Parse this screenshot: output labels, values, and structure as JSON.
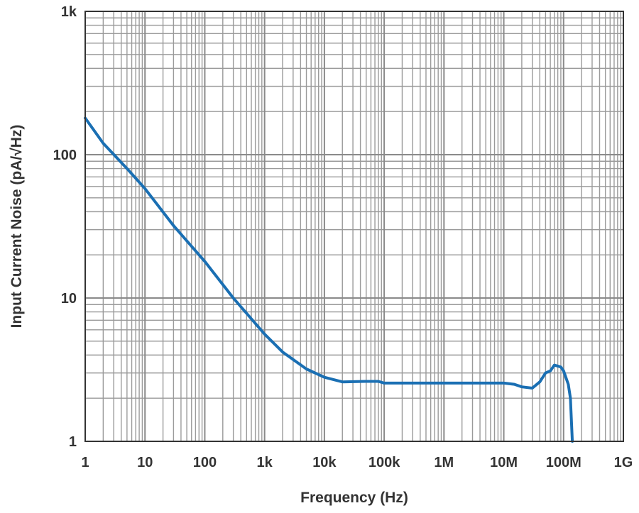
{
  "chart_data": {
    "type": "line",
    "title": "",
    "xlabel": "Frequency (Hz)",
    "ylabel": "Input Current Noise (pA/√Hz)",
    "xscale": "log",
    "yscale": "log",
    "xlim": [
      1,
      1000000000
    ],
    "ylim": [
      1,
      1000
    ],
    "grid": true,
    "legend": "none",
    "x_ticks": [
      {
        "value": 1,
        "label": "1"
      },
      {
        "value": 10,
        "label": "10"
      },
      {
        "value": 100,
        "label": "100"
      },
      {
        "value": 1000,
        "label": "1k"
      },
      {
        "value": 10000,
        "label": "10k"
      },
      {
        "value": 100000,
        "label": "100k"
      },
      {
        "value": 1000000,
        "label": "1M"
      },
      {
        "value": 10000000,
        "label": "10M"
      },
      {
        "value": 100000000,
        "label": "100M"
      },
      {
        "value": 1000000000,
        "label": "1G"
      }
    ],
    "y_ticks": [
      {
        "value": 1,
        "label": "1"
      },
      {
        "value": 10,
        "label": "10"
      },
      {
        "value": 100,
        "label": "100"
      },
      {
        "value": 1000,
        "label": "1k"
      }
    ],
    "series": [
      {
        "color": "#1a6fb3",
        "points": [
          [
            1,
            180
          ],
          [
            2,
            120
          ],
          [
            5,
            80
          ],
          [
            10,
            58
          ],
          [
            30,
            32
          ],
          [
            100,
            18
          ],
          [
            300,
            10
          ],
          [
            1000,
            5.6
          ],
          [
            2000,
            4.2
          ],
          [
            5000,
            3.2
          ],
          [
            10000,
            2.8
          ],
          [
            20000,
            2.6
          ],
          [
            50000,
            2.62
          ],
          [
            80000,
            2.62
          ],
          [
            100000,
            2.55
          ],
          [
            1000000,
            2.55
          ],
          [
            10000000,
            2.55
          ],
          [
            15000000,
            2.5
          ],
          [
            20000000,
            2.4
          ],
          [
            30000000,
            2.35
          ],
          [
            40000000,
            2.6
          ],
          [
            50000000,
            3.0
          ],
          [
            60000000,
            3.1
          ],
          [
            70000000,
            3.4
          ],
          [
            80000000,
            3.35
          ],
          [
            90000000,
            3.3
          ],
          [
            100000000,
            3.1
          ],
          [
            120000000,
            2.5
          ],
          [
            130000000,
            2.0
          ],
          [
            140000000,
            1.0
          ]
        ]
      }
    ]
  }
}
